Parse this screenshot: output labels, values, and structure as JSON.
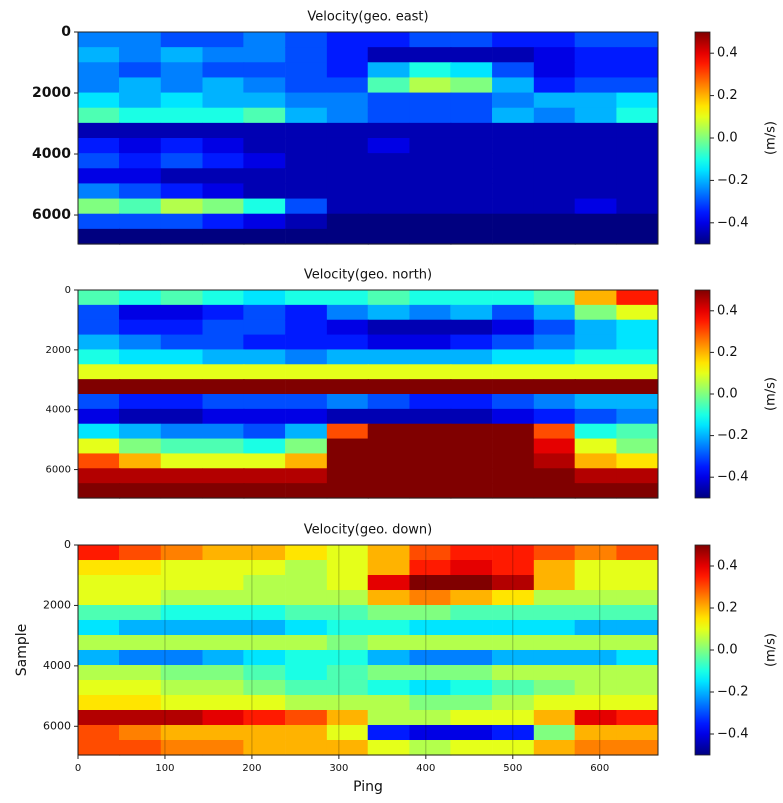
{
  "chart_data": [
    {
      "type": "heatmap",
      "title": "Velocity(geo. east)",
      "colormap": "jet",
      "x": [
        24,
        71,
        119,
        167,
        214,
        262,
        310,
        357,
        405,
        452,
        500,
        548,
        595,
        643
      ],
      "y": [
        248,
        745,
        1241,
        1738,
        2234,
        2730,
        3227,
        3723,
        4220,
        4716,
        5212,
        5709,
        6205,
        6702
      ],
      "xlim": [
        0,
        667
      ],
      "ylim": [
        6950,
        0
      ],
      "yticks": [
        0,
        2000,
        4000,
        6000
      ],
      "clim": [
        -0.5,
        0.5
      ],
      "cticks": [
        0.4,
        0.2,
        {
          "value": 0,
          "label": "0.0"
        },
        {
          "value": -0.2,
          "label": "−0.2"
        },
        {
          "value": -0.4,
          "label": "−0.4"
        }
      ],
      "colorbar_label": "(m/s)",
      "values": [
        [
          -0.25,
          -0.25,
          -0.3,
          -0.3,
          -0.25,
          -0.3,
          -0.35,
          -0.35,
          -0.3,
          -0.3,
          -0.35,
          -0.35,
          -0.3,
          -0.3
        ],
        [
          -0.2,
          -0.25,
          -0.2,
          -0.25,
          -0.25,
          -0.3,
          -0.35,
          -0.45,
          -0.45,
          -0.45,
          -0.45,
          -0.4,
          -0.35,
          -0.35
        ],
        [
          -0.25,
          -0.3,
          -0.25,
          -0.3,
          -0.3,
          -0.3,
          -0.35,
          -0.2,
          -0.1,
          -0.15,
          -0.3,
          -0.4,
          -0.35,
          -0.35
        ],
        [
          -0.25,
          -0.2,
          -0.25,
          -0.2,
          -0.25,
          -0.3,
          -0.3,
          -0.05,
          0.05,
          0,
          -0.2,
          -0.35,
          -0.3,
          -0.3
        ],
        [
          -0.15,
          -0.2,
          -0.15,
          -0.2,
          -0.2,
          -0.25,
          -0.25,
          -0.3,
          -0.3,
          -0.3,
          -0.25,
          -0.2,
          -0.2,
          -0.15
        ],
        [
          -0.05,
          -0.1,
          -0.1,
          -0.1,
          -0.05,
          -0.2,
          -0.25,
          -0.3,
          -0.3,
          -0.3,
          -0.2,
          -0.25,
          -0.2,
          -0.1
        ],
        [
          -0.45,
          -0.45,
          -0.45,
          -0.45,
          -0.45,
          -0.45,
          -0.45,
          -0.45,
          -0.45,
          -0.45,
          -0.45,
          -0.45,
          -0.45,
          -0.45
        ],
        [
          -0.35,
          -0.4,
          -0.35,
          -0.4,
          -0.45,
          -0.45,
          -0.45,
          -0.4,
          -0.45,
          -0.45,
          -0.45,
          -0.45,
          -0.45,
          -0.45
        ],
        [
          -0.3,
          -0.35,
          -0.3,
          -0.35,
          -0.4,
          -0.45,
          -0.45,
          -0.45,
          -0.45,
          -0.45,
          -0.45,
          -0.45,
          -0.45,
          -0.45
        ],
        [
          -0.4,
          -0.4,
          -0.45,
          -0.45,
          -0.45,
          -0.45,
          -0.45,
          -0.45,
          -0.45,
          -0.45,
          -0.45,
          -0.45,
          -0.45,
          -0.45
        ],
        [
          -0.25,
          -0.3,
          -0.35,
          -0.4,
          -0.45,
          -0.45,
          -0.45,
          -0.45,
          -0.45,
          -0.45,
          -0.45,
          -0.45,
          -0.45,
          -0.45
        ],
        [
          0,
          -0.05,
          0.05,
          0,
          -0.1,
          -0.3,
          -0.45,
          -0.45,
          -0.45,
          -0.45,
          -0.45,
          -0.45,
          -0.4,
          -0.45
        ],
        [
          -0.3,
          -0.3,
          -0.3,
          -0.35,
          -0.4,
          -0.45,
          -0.5,
          -0.5,
          -0.5,
          -0.5,
          -0.5,
          -0.5,
          -0.5,
          -0.5
        ],
        [
          -0.5,
          -0.5,
          -0.5,
          -0.5,
          -0.5,
          -0.5,
          -0.5,
          -0.5,
          -0.5,
          -0.5,
          -0.5,
          -0.5,
          -0.5,
          -0.5
        ]
      ]
    },
    {
      "type": "heatmap",
      "title": "Velocity(geo. north)",
      "colormap": "jet",
      "x": [
        24,
        71,
        119,
        167,
        214,
        262,
        310,
        357,
        405,
        452,
        500,
        548,
        595,
        643
      ],
      "y": [
        248,
        745,
        1241,
        1738,
        2234,
        2730,
        3227,
        3723,
        4220,
        4716,
        5212,
        5709,
        6205,
        6702
      ],
      "xlim": [
        0,
        667
      ],
      "ylim": [
        6950,
        0
      ],
      "yticks": [
        0,
        2000,
        4000,
        6000
      ],
      "clim": [
        -0.5,
        0.5
      ],
      "cticks": [
        0.4,
        0.2,
        {
          "value": 0,
          "label": "0.0"
        },
        {
          "value": -0.2,
          "label": "−0.2"
        },
        {
          "value": -0.4,
          "label": "−0.4"
        }
      ],
      "colorbar_label": "(m/s)",
      "values": [
        [
          -0.05,
          -0.1,
          -0.05,
          -0.1,
          -0.15,
          -0.1,
          -0.1,
          -0.05,
          -0.1,
          -0.1,
          -0.1,
          -0.05,
          0.2,
          0.35
        ],
        [
          -0.3,
          -0.4,
          -0.4,
          -0.35,
          -0.3,
          -0.35,
          -0.25,
          -0.2,
          -0.25,
          -0.2,
          -0.3,
          -0.2,
          0,
          0.1
        ],
        [
          -0.3,
          -0.35,
          -0.35,
          -0.3,
          -0.3,
          -0.35,
          -0.4,
          -0.45,
          -0.45,
          -0.45,
          -0.4,
          -0.3,
          -0.2,
          -0.15
        ],
        [
          -0.2,
          -0.25,
          -0.3,
          -0.3,
          -0.35,
          -0.35,
          -0.35,
          -0.4,
          -0.4,
          -0.35,
          -0.3,
          -0.25,
          -0.2,
          -0.15
        ],
        [
          -0.1,
          -0.15,
          -0.15,
          -0.2,
          -0.2,
          -0.25,
          -0.2,
          -0.2,
          -0.2,
          -0.2,
          -0.15,
          -0.15,
          -0.1,
          -0.1
        ],
        [
          0.1,
          0.1,
          0.1,
          0.1,
          0.1,
          0.1,
          0.1,
          0.1,
          0.1,
          0.1,
          0.1,
          0.1,
          0.1,
          0.1
        ],
        [
          0.5,
          0.5,
          0.5,
          0.5,
          0.5,
          0.5,
          0.5,
          0.5,
          0.5,
          0.5,
          0.5,
          0.5,
          0.5,
          0.5
        ],
        [
          -0.3,
          -0.35,
          -0.35,
          -0.3,
          -0.3,
          -0.3,
          -0.25,
          -0.3,
          -0.35,
          -0.35,
          -0.3,
          -0.25,
          -0.2,
          -0.2
        ],
        [
          -0.4,
          -0.45,
          -0.45,
          -0.4,
          -0.4,
          -0.4,
          -0.45,
          -0.45,
          -0.45,
          -0.45,
          -0.4,
          -0.35,
          -0.3,
          -0.25
        ],
        [
          -0.15,
          -0.2,
          -0.25,
          -0.25,
          -0.3,
          -0.2,
          0.3,
          0.5,
          0.5,
          0.5,
          0.5,
          0.3,
          -0.1,
          -0.05
        ],
        [
          0.1,
          0,
          -0.05,
          -0.05,
          -0.1,
          0,
          0.5,
          0.5,
          0.5,
          0.5,
          0.5,
          0.4,
          0.1,
          0
        ],
        [
          0.3,
          0.2,
          0.1,
          0.1,
          0.1,
          0.2,
          0.5,
          0.5,
          0.5,
          0.5,
          0.5,
          0.45,
          0.2,
          0.15
        ],
        [
          0.45,
          0.45,
          0.45,
          0.45,
          0.45,
          0.45,
          0.5,
          0.5,
          0.5,
          0.5,
          0.5,
          0.5,
          0.45,
          0.45
        ],
        [
          0.5,
          0.5,
          0.5,
          0.5,
          0.5,
          0.5,
          0.5,
          0.5,
          0.5,
          0.5,
          0.5,
          0.5,
          0.5,
          0.5
        ]
      ]
    },
    {
      "type": "heatmap",
      "title": "Velocity(geo. down)",
      "colormap": "jet",
      "xlabel": "Ping",
      "ylabel": "Sample",
      "x": [
        24,
        71,
        119,
        167,
        214,
        262,
        310,
        357,
        405,
        452,
        500,
        548,
        595,
        643
      ],
      "y": [
        248,
        745,
        1241,
        1738,
        2234,
        2730,
        3227,
        3723,
        4220,
        4716,
        5212,
        5709,
        6205,
        6702
      ],
      "xlim": [
        0,
        667
      ],
      "xticks": [
        0,
        100,
        200,
        300,
        400,
        500,
        600
      ],
      "ylim": [
        6950,
        0
      ],
      "yticks": [
        0,
        2000,
        4000,
        6000
      ],
      "clim": [
        -0.5,
        0.5
      ],
      "cticks": [
        0.4,
        0.2,
        {
          "value": 0,
          "label": "0.0"
        },
        {
          "value": -0.2,
          "label": "−0.2"
        },
        {
          "value": -0.4,
          "label": "−0.4"
        }
      ],
      "colorbar_label": "(m/s)",
      "values": [
        [
          0.35,
          0.3,
          0.25,
          0.2,
          0.2,
          0.15,
          0.1,
          0.2,
          0.3,
          0.35,
          0.35,
          0.3,
          0.25,
          0.3
        ],
        [
          0.15,
          0.15,
          0.1,
          0.1,
          0.1,
          0.05,
          0.1,
          0.2,
          0.35,
          0.4,
          0.35,
          0.2,
          0.1,
          0.1
        ],
        [
          0.1,
          0.1,
          0.1,
          0.1,
          0.05,
          0.05,
          0.1,
          0.4,
          0.5,
          0.5,
          0.45,
          0.2,
          0.1,
          0.1
        ],
        [
          0.1,
          0.1,
          0.05,
          0.05,
          0.05,
          0.05,
          0.05,
          0.2,
          0.25,
          0.2,
          0.15,
          0.05,
          0.05,
          0.05
        ],
        [
          -0.05,
          -0.05,
          -0.1,
          -0.1,
          -0.1,
          -0.05,
          -0.05,
          0,
          0,
          -0.05,
          -0.05,
          -0.05,
          -0.05,
          -0.05
        ],
        [
          -0.15,
          -0.2,
          -0.2,
          -0.2,
          -0.2,
          -0.15,
          -0.1,
          -0.1,
          -0.15,
          -0.15,
          -0.15,
          -0.15,
          -0.2,
          -0.2
        ],
        [
          0.05,
          0.05,
          0.05,
          0.05,
          0.05,
          0.05,
          0,
          0.05,
          0.05,
          0.05,
          0.05,
          0.05,
          0.05,
          0.05
        ],
        [
          -0.2,
          -0.25,
          -0.25,
          -0.2,
          -0.15,
          -0.1,
          -0.1,
          -0.2,
          -0.25,
          -0.25,
          -0.2,
          -0.2,
          -0.2,
          -0.15
        ],
        [
          0.05,
          0.05,
          0,
          0,
          -0.05,
          -0.1,
          -0.05,
          0,
          0,
          0,
          0.05,
          0.05,
          0.05,
          0.05
        ],
        [
          0.1,
          0.1,
          0.05,
          0.05,
          0,
          -0.05,
          -0.05,
          -0.1,
          -0.15,
          -0.1,
          -0.05,
          0,
          0.05,
          0.05
        ],
        [
          0.15,
          0.15,
          0.1,
          0.1,
          0.1,
          0.05,
          0.05,
          0.05,
          0,
          0,
          0.05,
          0.1,
          0.1,
          0.1
        ],
        [
          0.45,
          0.45,
          0.45,
          0.4,
          0.35,
          0.3,
          0.2,
          0.05,
          0.05,
          0.1,
          0.1,
          0.2,
          0.4,
          0.35
        ],
        [
          0.3,
          0.25,
          0.2,
          0.2,
          0.2,
          0.2,
          0.1,
          -0.35,
          -0.4,
          -0.4,
          -0.35,
          0,
          0.2,
          0.2
        ],
        [
          0.3,
          0.3,
          0.25,
          0.25,
          0.2,
          0.2,
          0.2,
          0.1,
          0.05,
          0.1,
          0.1,
          0.2,
          0.25,
          0.25
        ]
      ]
    }
  ]
}
